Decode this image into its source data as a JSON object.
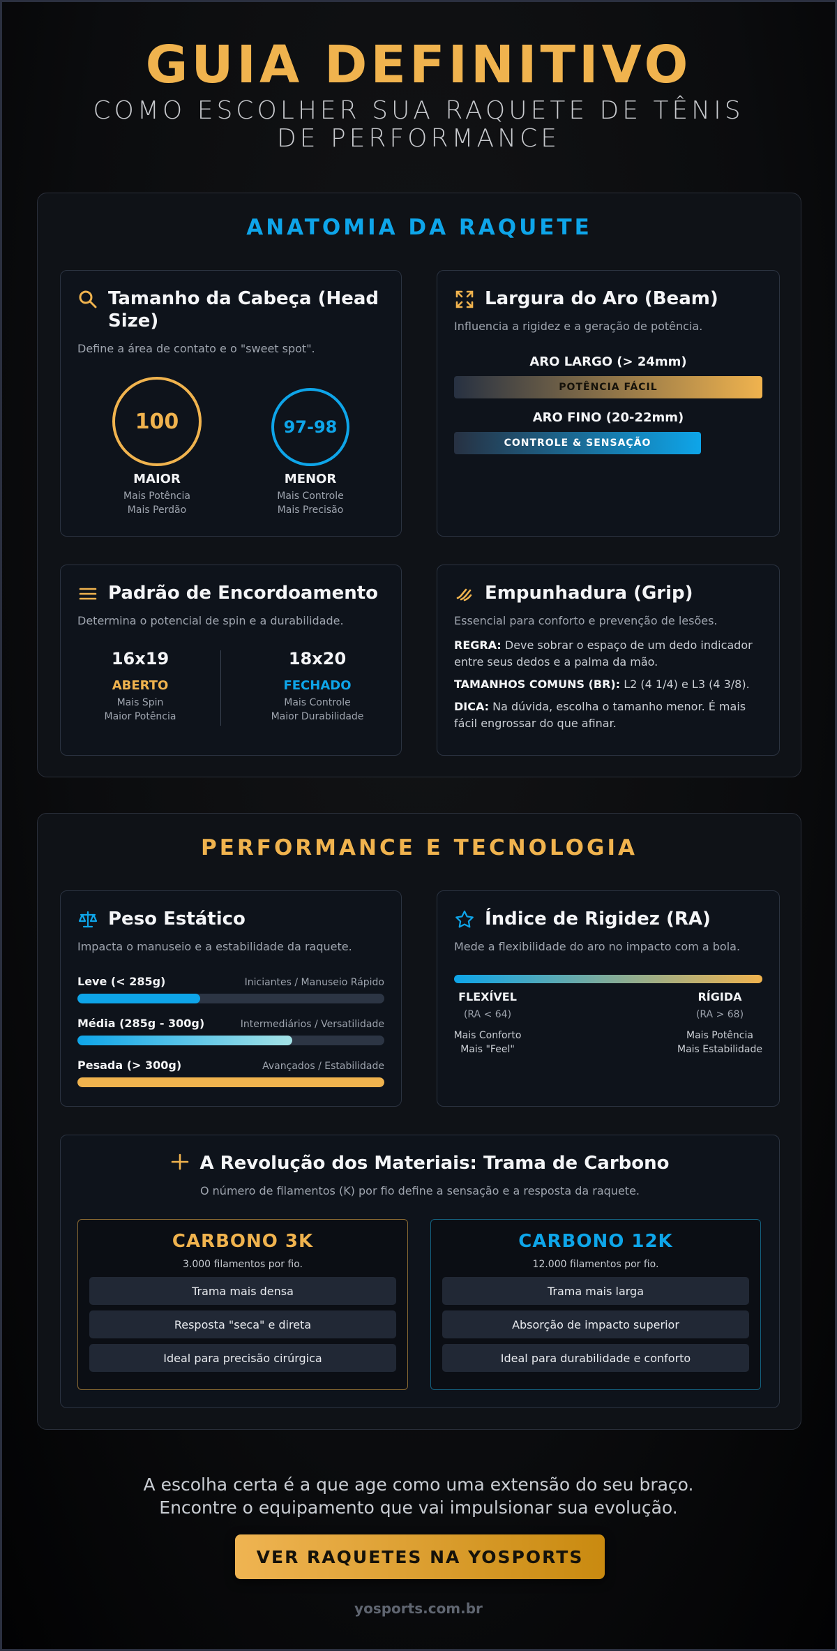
{
  "hero": {
    "title": "GUIA DEFINITIVO",
    "subtitle": "COMO ESCOLHER SUA RAQUETE DE TÊNIS DE PERFORMANCE"
  },
  "colors": {
    "gold": "#f0b34e",
    "blue": "#0ea5e9"
  },
  "anatomy": {
    "title": "ANATOMIA DA RAQUETE",
    "head_size": {
      "icon": "search-icon",
      "title": "Tamanho da Cabeça (Head Size)",
      "desc": "Define a área de contato e o \"sweet spot\".",
      "big": {
        "value": "100",
        "label": "MAIOR",
        "line1": "Mais Potência",
        "line2": "Mais Perdão"
      },
      "small": {
        "value": "97-98",
        "label": "MENOR",
        "line1": "Mais Controle",
        "line2": "Mais Precisão"
      }
    },
    "beam": {
      "icon": "expand-icon",
      "title": "Largura do Aro (Beam)",
      "desc": "Influencia a rigidez e a geração de potência.",
      "wide_label": "ARO LARGO (> 24mm)",
      "wide_bar": "POTÊNCIA FÁCIL",
      "thin_label": "ARO FINO (20-22mm)",
      "thin_bar": "CONTROLE & SENSAÇÃO"
    },
    "strings": {
      "icon": "menu-lines-icon",
      "title": "Padrão de Encordoamento",
      "desc": "Determina o potencial de spin e a durabilidade.",
      "open": {
        "pattern": "16x19",
        "label": "ABERTO",
        "line1": "Mais Spin",
        "line2": "Maior Potência"
      },
      "closed": {
        "pattern": "18x20",
        "label": "FECHADO",
        "line1": "Mais Controle",
        "line2": "Maior Durabilidade"
      }
    },
    "grip": {
      "icon": "hand-grip-icon",
      "title": "Empunhadura (Grip)",
      "desc": "Essencial para conforto e prevenção de lesões.",
      "rule_label": "REGRA:",
      "rule_text": " Deve sobrar o espaço de um dedo indicador entre seus dedos e a palma da mão.",
      "sizes_label": "TAMANHOS COMUNS (BR):",
      "sizes_text": " L2 (4 1/4) e L3 (4 3/8).",
      "tip_label": "DICA:",
      "tip_text": " Na dúvida, escolha o tamanho menor. É mais fácil engrossar do que afinar."
    }
  },
  "performance": {
    "title": "PERFORMANCE E TECNOLOGIA",
    "weight": {
      "icon": "scale-icon",
      "title": "Peso Estático",
      "desc": "Impacta o manuseio e a estabilidade da raquete.",
      "rows": [
        {
          "name": "Leve (< 285g)",
          "tag": "Iniciantes / Manuseio Rápido",
          "level": 0.4
        },
        {
          "name": "Média (285g - 300g)",
          "tag": "Intermediários / Versatilidade",
          "level": 0.7
        },
        {
          "name": "Pesada (> 300g)",
          "tag": "Avançados / Estabilidade",
          "level": 1.0
        }
      ]
    },
    "stiffness": {
      "icon": "star-icon",
      "title": "Índice de Rigidez (RA)",
      "desc": "Mede a flexibilidade do aro no impacto com a bola.",
      "flex": {
        "label": "FLEXÍVEL",
        "range": "(RA < 64)",
        "line1": "Mais Conforto",
        "line2": "Mais \"Feel\""
      },
      "rigid": {
        "label": "RÍGIDA",
        "range": "(RA > 68)",
        "line1": "Mais Potência",
        "line2": "Mais Estabilidade"
      }
    },
    "materials": {
      "icon": "plus-icon",
      "title": "A Revolução dos Materiais: Trama de Carbono",
      "desc": "O número de filamentos (K) por fio define a sensação e a resposta da raquete.",
      "c3k": {
        "title": "CARBONO 3K",
        "sub": "3.000 filamentos por fio.",
        "items": [
          "Trama mais densa",
          "Resposta \"seca\" e direta",
          "Ideal para precisão cirúrgica"
        ]
      },
      "c12k": {
        "title": "CARBONO 12K",
        "sub": "12.000 filamentos por fio.",
        "items": [
          "Trama mais larga",
          "Absorção de impacto superior",
          "Ideal para durabilidade e conforto"
        ]
      }
    }
  },
  "footer": {
    "line1": "A escolha certa é a que age como uma extensão do seu braço.",
    "line2": "Encontre o equipamento que vai impulsionar sua evolução.",
    "cta": "VER RAQUETES NA YOSPORTS",
    "site": "yosports.com.br"
  }
}
